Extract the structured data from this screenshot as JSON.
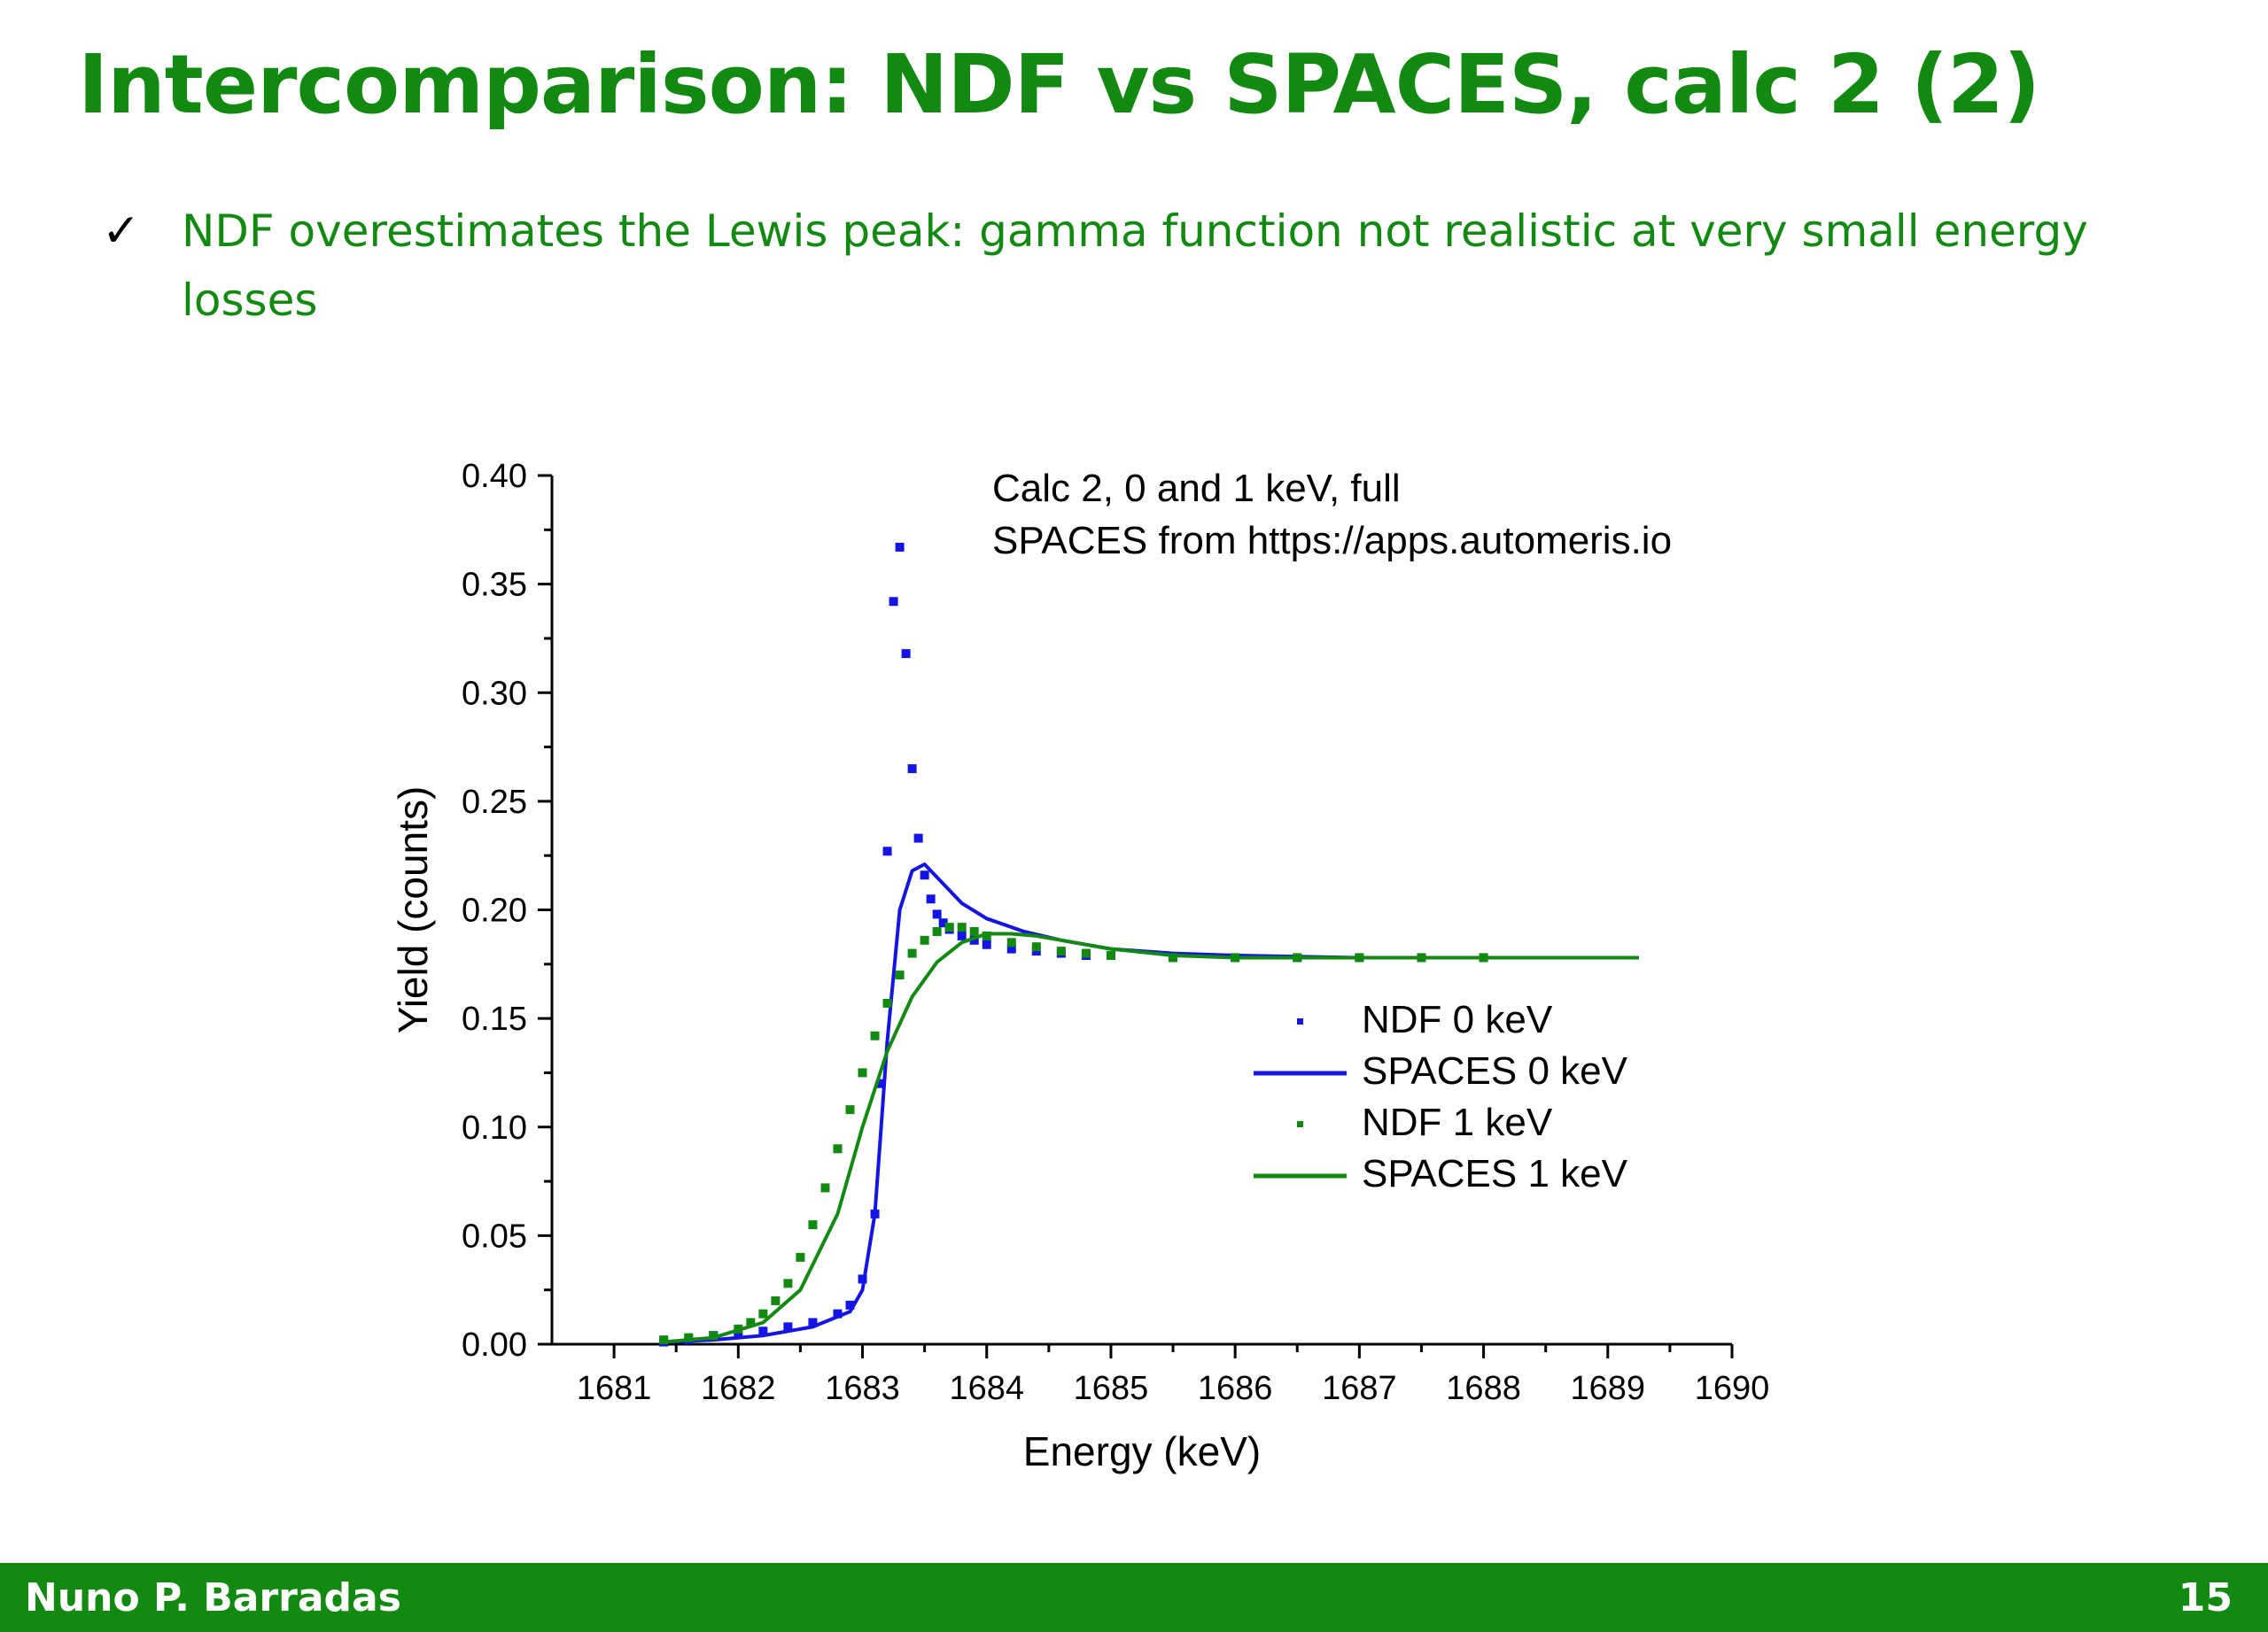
{
  "slide": {
    "title": "Intercomparison: NDF vs SPACES, calc 2 (2)",
    "bullet": "NDF overestimates the Lewis peak: gamma function not realistic at very small energy losses"
  },
  "footer": {
    "author": "Nuno P. Barradas",
    "page_number": "15"
  },
  "colors": {
    "title": "#128a12",
    "footer_bg": "#128a12",
    "blue_series": "#1414e6",
    "green_series": "#128a12"
  },
  "chart_data": {
    "type": "scatter",
    "annotation_lines": [
      "Calc 2, 0 and 1 keV, full",
      "SPACES from https://apps.automeris.io"
    ],
    "xlabel": "Energy (keV)",
    "ylabel": "Yield (counts)",
    "xlim": [
      1680.5,
      1690
    ],
    "ylim": [
      0,
      0.4
    ],
    "x_ticks": [
      1681,
      1682,
      1683,
      1684,
      1685,
      1686,
      1687,
      1688,
      1689,
      1690
    ],
    "y_ticks": [
      0.0,
      0.05,
      0.1,
      0.15,
      0.2,
      0.25,
      0.3,
      0.35,
      0.4
    ],
    "y_tick_labels": [
      "0.00",
      "0.05",
      "0.10",
      "0.15",
      "0.20",
      "0.25",
      "0.30",
      "0.35",
      "0.40"
    ],
    "grid": false,
    "legend_position": "center-right",
    "series": [
      {
        "name": "NDF 0 keV",
        "style": "markers",
        "color": "#1414e6",
        "x": [
          1681.4,
          1681.6,
          1681.8,
          1682.0,
          1682.2,
          1682.4,
          1682.6,
          1682.8,
          1682.9,
          1683.0,
          1683.1,
          1683.15,
          1683.2,
          1683.25,
          1683.3,
          1683.35,
          1683.4,
          1683.45,
          1683.5,
          1683.55,
          1683.6,
          1683.65,
          1683.7,
          1683.8,
          1683.9,
          1684.0,
          1684.2,
          1684.4,
          1684.6,
          1684.8,
          1685.0,
          1685.5,
          1686.0,
          1686.5,
          1687.0,
          1687.5,
          1688.0
        ],
        "y": [
          0.001,
          0.002,
          0.004,
          0.005,
          0.006,
          0.008,
          0.01,
          0.014,
          0.018,
          0.03,
          0.06,
          0.12,
          0.227,
          0.342,
          0.367,
          0.318,
          0.265,
          0.233,
          0.216,
          0.205,
          0.198,
          0.194,
          0.191,
          0.188,
          0.186,
          0.184,
          0.182,
          0.181,
          0.18,
          0.179,
          0.179,
          0.178,
          0.178,
          0.178,
          0.178,
          0.178,
          0.178
        ]
      },
      {
        "name": "SPACES 0 keV",
        "style": "line",
        "color": "#1414e6",
        "x": [
          1681.4,
          1681.8,
          1682.2,
          1682.6,
          1682.9,
          1683.0,
          1683.1,
          1683.15,
          1683.2,
          1683.3,
          1683.4,
          1683.5,
          1683.6,
          1683.8,
          1684.0,
          1684.3,
          1684.6,
          1685.0,
          1685.5,
          1686.0,
          1687.0,
          1688.0,
          1689.0,
          1689.25
        ],
        "y": [
          0.001,
          0.002,
          0.004,
          0.008,
          0.015,
          0.025,
          0.06,
          0.1,
          0.14,
          0.2,
          0.218,
          0.221,
          0.215,
          0.203,
          0.196,
          0.19,
          0.186,
          0.182,
          0.18,
          0.179,
          0.178,
          0.178,
          0.178,
          0.178
        ]
      },
      {
        "name": "NDF 1 keV",
        "style": "markers",
        "color": "#128a12",
        "x": [
          1681.4,
          1681.6,
          1681.8,
          1682.0,
          1682.1,
          1682.2,
          1682.3,
          1682.4,
          1682.5,
          1682.6,
          1682.7,
          1682.8,
          1682.9,
          1683.0,
          1683.1,
          1683.2,
          1683.3,
          1683.4,
          1683.5,
          1683.6,
          1683.7,
          1683.8,
          1683.9,
          1684.0,
          1684.2,
          1684.4,
          1684.6,
          1684.8,
          1685.0,
          1685.5,
          1686.0,
          1686.5,
          1687.0,
          1687.5,
          1688.0
        ],
        "y": [
          0.002,
          0.003,
          0.004,
          0.007,
          0.01,
          0.014,
          0.02,
          0.028,
          0.04,
          0.055,
          0.072,
          0.09,
          0.108,
          0.125,
          0.142,
          0.157,
          0.17,
          0.18,
          0.186,
          0.19,
          0.192,
          0.192,
          0.19,
          0.188,
          0.185,
          0.183,
          0.181,
          0.18,
          0.179,
          0.178,
          0.178,
          0.178,
          0.178,
          0.178,
          0.178
        ]
      },
      {
        "name": "SPACES 1 keV",
        "style": "line",
        "color": "#128a12",
        "x": [
          1681.4,
          1681.8,
          1682.2,
          1682.5,
          1682.8,
          1683.0,
          1683.2,
          1683.4,
          1683.6,
          1683.8,
          1684.0,
          1684.2,
          1684.4,
          1684.6,
          1685.0,
          1685.5,
          1686.0,
          1687.0,
          1688.0,
          1689.0,
          1689.25
        ],
        "y": [
          0.001,
          0.003,
          0.01,
          0.025,
          0.06,
          0.1,
          0.135,
          0.16,
          0.176,
          0.185,
          0.189,
          0.189,
          0.188,
          0.186,
          0.182,
          0.179,
          0.178,
          0.178,
          0.178,
          0.178,
          0.178
        ]
      }
    ]
  }
}
